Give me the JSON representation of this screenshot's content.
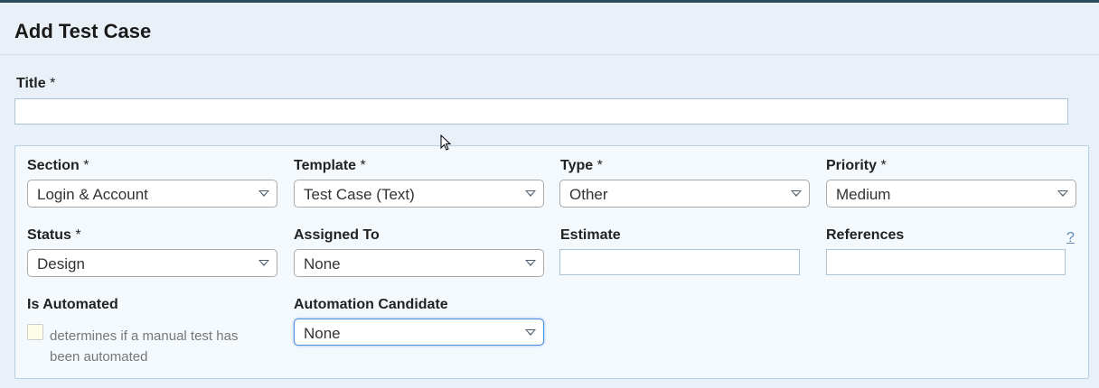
{
  "header": {
    "title": "Add Test Case"
  },
  "title_field": {
    "label": "Title",
    "required": "*",
    "value": ""
  },
  "fields": {
    "section": {
      "label": "Section",
      "required": "*",
      "value": "Login & Account"
    },
    "template": {
      "label": "Template",
      "required": "*",
      "value": "Test Case (Text)"
    },
    "type": {
      "label": "Type",
      "required": "*",
      "value": "Other"
    },
    "priority": {
      "label": "Priority",
      "required": "*",
      "value": "Medium"
    },
    "status": {
      "label": "Status",
      "required": "*",
      "value": "Design"
    },
    "assigned_to": {
      "label": "Assigned To",
      "value": "None"
    },
    "estimate": {
      "label": "Estimate",
      "value": ""
    },
    "references": {
      "label": "References",
      "value": "",
      "help": "?"
    },
    "is_automated": {
      "label": "Is Automated",
      "description": "determines if a manual test has been automated",
      "checked": false
    },
    "automation_candidate": {
      "label": "Automation Candidate",
      "value": "None"
    }
  },
  "colors": {
    "topbar": "#2e4c5c",
    "background": "#e9f0f7",
    "panel": "#f4f9fd",
    "focus": "#4a8ee0"
  }
}
